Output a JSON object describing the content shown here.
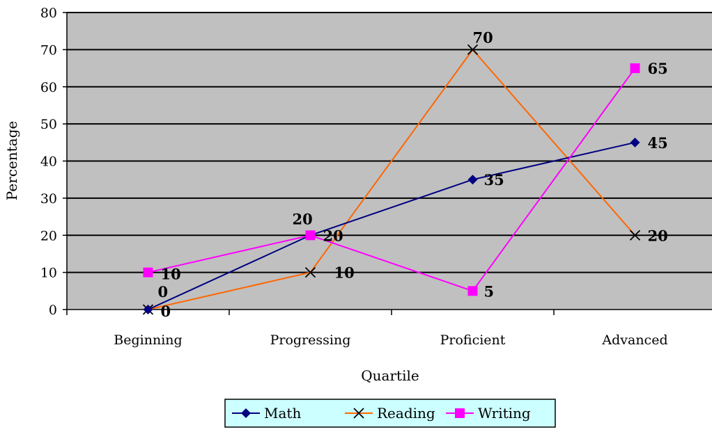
{
  "chart_data": {
    "type": "line",
    "title": "",
    "xlabel": "Quartile",
    "ylabel": "Percentage",
    "ylim": [
      0,
      80
    ],
    "yticks": [
      0,
      10,
      20,
      30,
      40,
      50,
      60,
      70,
      80
    ],
    "categories": [
      "Beginning",
      "Progressing",
      "Proficient",
      "Advanced"
    ],
    "grid": true,
    "plot_background": "#c0c0c0",
    "legend_position": "bottom-center",
    "legend_background": "#ccffff",
    "series": [
      {
        "name": "Math",
        "values": [
          0,
          20,
          35,
          45
        ],
        "color": "#000080",
        "marker": "diamond"
      },
      {
        "name": "Reading",
        "values": [
          0,
          10,
          70,
          20
        ],
        "color": "#ff6600",
        "marker": "x"
      },
      {
        "name": "Writing",
        "values": [
          10,
          20,
          5,
          65
        ],
        "color": "#ff00ff",
        "marker": "square"
      }
    ]
  }
}
